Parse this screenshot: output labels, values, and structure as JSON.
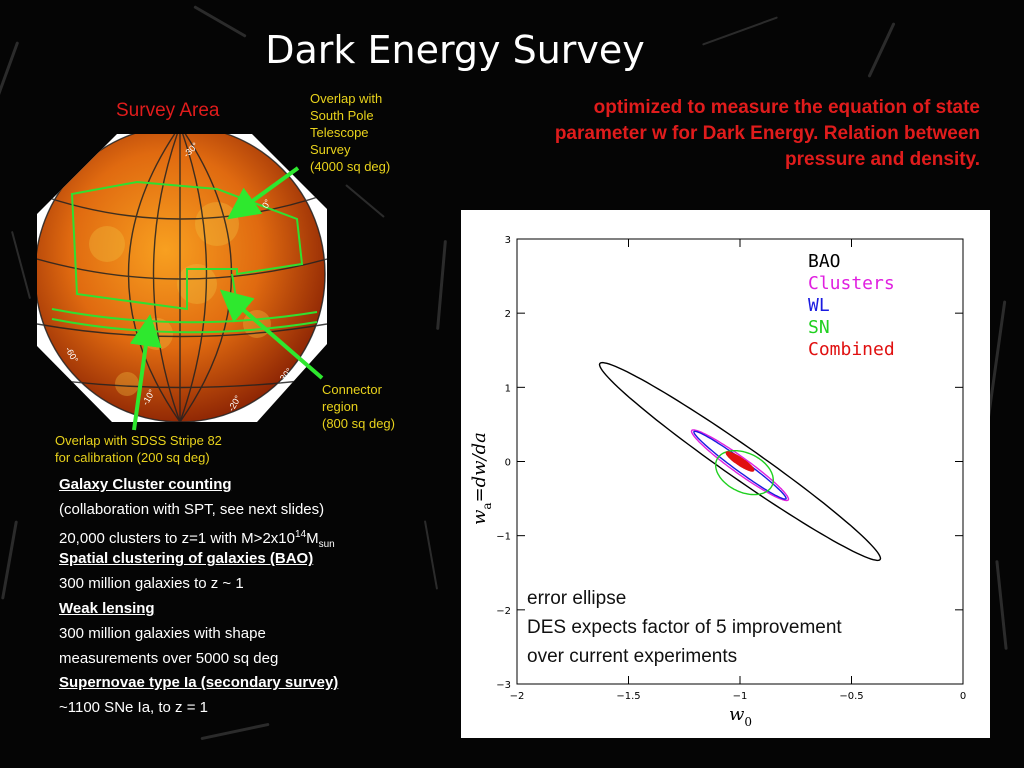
{
  "title": "Dark Energy Survey",
  "survey_area_label": "Survey Area",
  "notes": {
    "spt": "Overlap with\nSouth Pole\nTelescope\nSurvey\n(4000 sq deg)",
    "connector": "Connector\nregion\n(800 sq deg)",
    "sdss": "Overlap with SDSS Stripe 82\nfor calibration (200 sq deg)"
  },
  "optimized_text": "optimized to measure the equation of state parameter w for Dark Energy. Relation between pressure and density.",
  "globe_labels": [
    "-30°",
    "0°",
    "-60°",
    "-10°",
    "-20°",
    "-30°"
  ],
  "science_list": {
    "cluster_head": "Galaxy Cluster counting",
    "cluster_line1": "(collaboration with SPT, see next slides)",
    "cluster_line2_main": "20,000 clusters to z=1 with M>2x10",
    "cluster_line2_sup": "14",
    "cluster_line2_unit": "M",
    "cluster_line2_sub": "sun",
    "bao_head": "Spatial clustering of galaxies (BAO)",
    "bao_line": "300 million galaxies to z ~ 1",
    "wl_head": "Weak lensing",
    "wl_line1": "300 million galaxies with shape",
    "wl_line2": "measurements over 5000 sq deg",
    "sn_head": "Supernovae type Ia (secondary survey)",
    "sn_line": "~1100 SNe Ia, to z = 1"
  },
  "chart_note": "error ellipse\nDES expects  factor of 5 improvement\nover current experiments",
  "colors": {
    "title": "#ffffff",
    "red_text": "#e01c1c",
    "yellow_text": "#e8d21c",
    "arrow": "#2ee82e"
  },
  "chart_data": {
    "type": "scatter",
    "subtype": "confidence-ellipses",
    "xlabel_main": "w",
    "xlabel_sub": "0",
    "ylabel_main": "w",
    "ylabel_sub": "a",
    "ylabel_rest": "=dw/da",
    "xlim": [
      -2,
      0
    ],
    "ylim": [
      -3,
      3
    ],
    "xticks": [
      -2,
      -1.5,
      -1,
      -0.5,
      0
    ],
    "yticks": [
      -3,
      -2,
      -1,
      0,
      1,
      2,
      3
    ],
    "xtick_labels": [
      "−2",
      "−1.5",
      "−1",
      "−0.5",
      "0"
    ],
    "ytick_labels": [
      "−3",
      "−2",
      "−1",
      "0",
      "1",
      "2",
      "3"
    ],
    "legend_placement": "top-right",
    "series": [
      {
        "name": "BAO",
        "color": "#000000",
        "cx": -1.0,
        "cy": 0.0,
        "a": 1.47,
        "b": 0.115,
        "angle_deg": -65,
        "filled": false
      },
      {
        "name": "Clusters",
        "color": "#e020e0",
        "cx": -1.0,
        "cy": -0.05,
        "a": 0.52,
        "b": 0.055,
        "angle_deg": -66,
        "filled": false
      },
      {
        "name": "WL",
        "color": "#1a1ae0",
        "cx": -1.0,
        "cy": -0.05,
        "a": 0.5,
        "b": 0.04,
        "angle_deg": -66,
        "filled": false
      },
      {
        "name": "SN",
        "color": "#20d020",
        "cx": -0.98,
        "cy": -0.15,
        "a": 0.3,
        "b": 0.12,
        "angle_deg": -80,
        "filled": false
      },
      {
        "name": "Combined",
        "color": "#e01010",
        "cx": -1.0,
        "cy": 0.0,
        "a": 0.14,
        "b": 0.025,
        "angle_deg": -66,
        "filled": true
      }
    ]
  }
}
